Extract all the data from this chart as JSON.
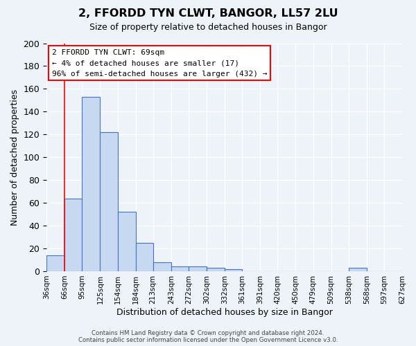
{
  "title": "2, FFORDD TYN CLWT, BANGOR, LL57 2LU",
  "subtitle": "Size of property relative to detached houses in Bangor",
  "xlabel": "Distribution of detached houses by size in Bangor",
  "ylabel": "Number of detached properties",
  "bar_values": [
    14,
    64,
    153,
    122,
    52,
    25,
    8,
    4,
    4,
    3,
    2,
    0,
    0,
    0,
    0,
    0,
    0,
    3,
    0,
    0
  ],
  "tick_labels": [
    "36sqm",
    "66sqm",
    "95sqm",
    "125sqm",
    "154sqm",
    "184sqm",
    "213sqm",
    "243sqm",
    "272sqm",
    "302sqm",
    "332sqm",
    "361sqm",
    "391sqm",
    "420sqm",
    "450sqm",
    "479sqm",
    "509sqm",
    "538sqm",
    "568sqm",
    "597sqm",
    "627sqm"
  ],
  "bin_edges": [
    36,
    66,
    95,
    125,
    154,
    184,
    213,
    243,
    272,
    302,
    332,
    361,
    391,
    420,
    450,
    479,
    509,
    538,
    568,
    597,
    627
  ],
  "bar_color": "#c6d9f0",
  "bar_edge_color": "#4472c4",
  "ylim": [
    0,
    200
  ],
  "yticks": [
    0,
    20,
    40,
    60,
    80,
    100,
    120,
    140,
    160,
    180,
    200
  ],
  "annotation_line1": "2 FFORDD TYN CLWT: 69sqm",
  "annotation_line2": "← 4% of detached houses are smaller (17)",
  "annotation_line3": "96% of semi-detached houses are larger (432) →",
  "red_line_x": 66,
  "footer1": "Contains HM Land Registry data © Crown copyright and database right 2024.",
  "footer2": "Contains public sector information licensed under the Open Government Licence v3.0.",
  "background_color": "#eef2f9",
  "grid_color": "#ffffff"
}
